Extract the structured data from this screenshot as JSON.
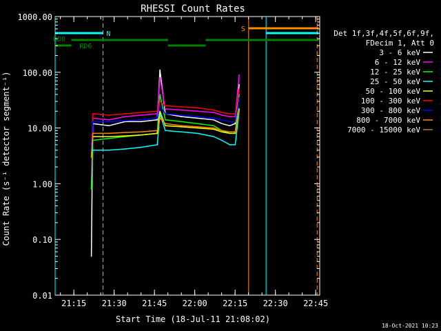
{
  "chart_data": {
    "type": "line",
    "title": "RHESSI Count Rates",
    "xlabel": "Start Time (18-Jul-11 21:08:02)",
    "ylabel": "Count Rate (s⁻¹ detector segment⁻¹)",
    "yscale": "log",
    "ylim": [
      0.01,
      1000
    ],
    "xlim": [
      "21:08:02",
      "22:46:30"
    ],
    "x_ticks": [
      "21:15",
      "21:30",
      "21:45",
      "22:00",
      "22:15",
      "22:30",
      "22:45"
    ],
    "y_ticks": [
      "0.01",
      "0.10",
      "1.00",
      "10.00",
      "100.00",
      "1000.00"
    ],
    "legend_header": [
      "Det 1f,3f,4f,5f,6f,9f,",
      "FDecim 1, Att 0"
    ],
    "legend_position": "right",
    "series": [
      {
        "name": "3 - 6 keV",
        "color": "#ffffff",
        "points": [
          [
            0,
            0.05
          ],
          [
            1,
            12
          ],
          [
            2,
            11
          ],
          [
            3,
            13
          ],
          [
            4,
            13
          ],
          [
            5,
            14
          ],
          [
            6,
            110
          ],
          [
            7,
            18
          ],
          [
            8,
            16
          ],
          [
            9,
            15
          ],
          [
            10,
            14
          ],
          [
            11,
            12
          ],
          [
            12,
            11
          ],
          [
            13,
            12
          ],
          [
            14,
            60
          ]
        ]
      },
      {
        "name": "6 - 12 keV",
        "color": "#ff00ff",
        "points": [
          [
            0,
            1.0
          ],
          [
            1,
            15
          ],
          [
            2,
            14
          ],
          [
            3,
            16
          ],
          [
            4,
            17
          ],
          [
            5,
            18
          ],
          [
            6,
            80
          ],
          [
            7,
            22
          ],
          [
            8,
            21
          ],
          [
            9,
            20
          ],
          [
            10,
            19
          ],
          [
            11,
            17
          ],
          [
            12,
            16
          ],
          [
            13,
            16
          ],
          [
            14,
            90
          ]
        ]
      },
      {
        "name": "12 - 25 keV",
        "color": "#00ff00",
        "points": [
          [
            0,
            0.8
          ],
          [
            1,
            6
          ],
          [
            2,
            6.5
          ],
          [
            3,
            7
          ],
          [
            4,
            7.5
          ],
          [
            5,
            8
          ],
          [
            6,
            40
          ],
          [
            7,
            14
          ],
          [
            8,
            13
          ],
          [
            9,
            12
          ],
          [
            10,
            11
          ],
          [
            11,
            9
          ],
          [
            12,
            8
          ],
          [
            13,
            8
          ],
          [
            14,
            40
          ]
        ]
      },
      {
        "name": "25 - 50 keV",
        "color": "#00ffff",
        "points": [
          [
            0,
            3
          ],
          [
            1,
            4
          ],
          [
            2,
            4
          ],
          [
            3,
            4.2
          ],
          [
            4,
            4.5
          ],
          [
            5,
            5
          ],
          [
            6,
            18
          ],
          [
            7,
            9
          ],
          [
            8,
            8.5
          ],
          [
            9,
            8
          ],
          [
            10,
            7
          ],
          [
            11,
            6
          ],
          [
            12,
            5
          ],
          [
            13,
            5
          ],
          [
            14,
            20
          ]
        ]
      },
      {
        "name": "50 - 100 keV",
        "color": "#ffff00",
        "points": [
          [
            0,
            3
          ],
          [
            1,
            7
          ],
          [
            2,
            7
          ],
          [
            3,
            7.2
          ],
          [
            4,
            7.5
          ],
          [
            5,
            8
          ],
          [
            6,
            20
          ],
          [
            7,
            11
          ],
          [
            8,
            10.5
          ],
          [
            9,
            10
          ],
          [
            10,
            9.5
          ],
          [
            11,
            8.5
          ],
          [
            12,
            8
          ],
          [
            13,
            8
          ],
          [
            14,
            22
          ]
        ]
      },
      {
        "name": "100 - 300 keV",
        "color": "#ff0000",
        "points": [
          [
            0,
            4
          ],
          [
            1,
            18
          ],
          [
            2,
            17
          ],
          [
            3,
            18
          ],
          [
            4,
            19
          ],
          [
            5,
            20
          ],
          [
            6,
            30
          ],
          [
            7,
            25
          ],
          [
            8,
            24
          ],
          [
            9,
            23
          ],
          [
            10,
            21
          ],
          [
            11,
            19
          ],
          [
            12,
            18
          ],
          [
            13,
            18
          ],
          [
            14,
            50
          ]
        ]
      },
      {
        "name": "300 - 800 keV",
        "color": "#0000ff",
        "points": [
          [
            0,
            4
          ],
          [
            1,
            13
          ],
          [
            2,
            13
          ],
          [
            3,
            13.5
          ],
          [
            4,
            14
          ],
          [
            5,
            15
          ],
          [
            6,
            25
          ],
          [
            7,
            18
          ],
          [
            8,
            17
          ],
          [
            9,
            16
          ],
          [
            10,
            15
          ],
          [
            11,
            14
          ],
          [
            12,
            13
          ],
          [
            13,
            13
          ],
          [
            14,
            35
          ]
        ]
      },
      {
        "name": "800 - 7000 keV",
        "color": "#ff8c00",
        "points": [
          [
            0,
            3
          ],
          [
            1,
            8
          ],
          [
            2,
            8
          ],
          [
            3,
            8.3
          ],
          [
            4,
            8.5
          ],
          [
            5,
            9
          ],
          [
            6,
            15
          ],
          [
            7,
            12
          ],
          [
            8,
            11
          ],
          [
            9,
            10.5
          ],
          [
            10,
            10
          ],
          [
            11,
            9
          ],
          [
            12,
            8.5
          ],
          [
            13,
            8.5
          ],
          [
            14,
            20
          ]
        ]
      },
      {
        "name": "7000 - 15000 keV",
        "color": "#b8860b",
        "points": []
      }
    ],
    "x_index_times_min": [
      13.5,
      14,
      20,
      26,
      32,
      38,
      39,
      41,
      47,
      53,
      59,
      62,
      65,
      67,
      68.5
    ],
    "attenuator_bar": [
      {
        "label": "N",
        "color": "#00ffff",
        "from_min": 0,
        "to_min": 17.8
      },
      {
        "label": "S",
        "color": "#ff8c00",
        "from_min": 72,
        "to_min": 98
      },
      {
        "label": "",
        "color": "#00ffff",
        "from_min": 78.5,
        "to_min": 98
      }
    ],
    "decimation_bar": [
      {
        "label": "RD0",
        "from_min": 0,
        "to_min": 6
      },
      {
        "label": "RD6",
        "from_min": 6,
        "to_min": 42
      },
      {
        "label": "",
        "from_min": 42,
        "to_min": 56
      },
      {
        "label": "",
        "from_min": 56,
        "to_min": 98
      }
    ],
    "vertical_markers_min": [
      {
        "min": 0,
        "color": "#00ffff",
        "style": "solid"
      },
      {
        "min": 17.8,
        "color": "#00ffff",
        "style": "dashed"
      },
      {
        "min": 72,
        "color": "#ff8c00",
        "style": "solid"
      },
      {
        "min": 78.5,
        "color": "#00ffff",
        "style": "solid"
      },
      {
        "min": 97.5,
        "color": "#ff8c00",
        "style": "dashed"
      }
    ]
  },
  "footer_timestamp": "18-Oct-2021 10:23"
}
